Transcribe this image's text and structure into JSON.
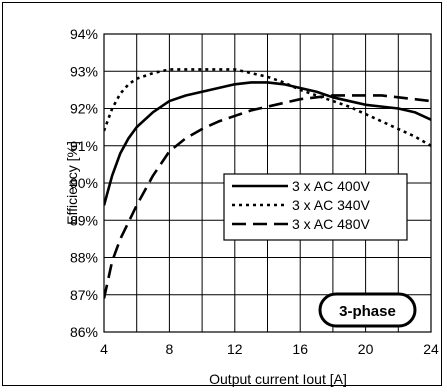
{
  "chart_data": {
    "type": "line",
    "xlabel": "Output current Iout [A]",
    "ylabel": "Efficiency [%]",
    "xlim": [
      4,
      24
    ],
    "ylim": [
      86,
      94
    ],
    "x_ticks": [
      "4",
      "8",
      "12",
      "16",
      "20",
      "24"
    ],
    "y_ticks": [
      "86%",
      "87%",
      "88%",
      "89%",
      "90%",
      "91%",
      "92%",
      "93%",
      "94%"
    ],
    "grid": true,
    "legend_position": "center-right",
    "badge": "3-phase",
    "series": [
      {
        "name": "3 x AC 400V",
        "style": "solid",
        "x": [
          4,
          4.5,
          5,
          5.5,
          6,
          7,
          8,
          9,
          10,
          11,
          12,
          13,
          14,
          15,
          16,
          17,
          18,
          19,
          20,
          21,
          22,
          23,
          24
        ],
        "y": [
          89.4,
          90.2,
          90.8,
          91.2,
          91.5,
          91.9,
          92.2,
          92.35,
          92.45,
          92.55,
          92.65,
          92.7,
          92.7,
          92.65,
          92.55,
          92.45,
          92.3,
          92.2,
          92.1,
          92.05,
          92.0,
          91.9,
          91.7
        ]
      },
      {
        "name": "3 x AC 340V",
        "style": "dotted",
        "x": [
          4,
          4.5,
          5,
          5.5,
          6,
          7,
          8,
          9,
          10,
          11,
          12,
          13,
          14,
          15,
          16,
          17,
          18,
          19,
          20,
          21,
          22,
          23,
          24
        ],
        "y": [
          91.4,
          92.0,
          92.4,
          92.65,
          92.8,
          92.95,
          93.05,
          93.05,
          93.05,
          93.05,
          93.05,
          92.95,
          92.85,
          92.7,
          92.5,
          92.35,
          92.2,
          92.05,
          91.85,
          91.65,
          91.45,
          91.25,
          91.0
        ]
      },
      {
        "name": "3 x AC 480V",
        "style": "dashed",
        "x": [
          4,
          4.5,
          5,
          5.5,
          6,
          7,
          8,
          9,
          10,
          11,
          12,
          13,
          14,
          15,
          16,
          17,
          18,
          19,
          20,
          21,
          22,
          23,
          24
        ],
        "y": [
          86.9,
          87.9,
          88.5,
          88.95,
          89.4,
          90.2,
          90.85,
          91.2,
          91.45,
          91.65,
          91.8,
          91.95,
          92.05,
          92.15,
          92.25,
          92.3,
          92.35,
          92.35,
          92.35,
          92.35,
          92.3,
          92.25,
          92.2
        ]
      }
    ]
  }
}
